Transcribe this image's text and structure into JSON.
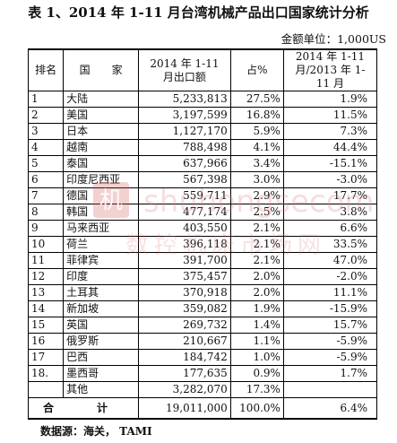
{
  "title": "表 1、2014 年 1-11 月台湾机械产品出口国家统计分析",
  "unit": "金额单位：1,000US",
  "headers": {
    "rank": "排名",
    "country": "国　　家",
    "export": "2014 年 1-11 月出口额",
    "share": "占%",
    "growth": "2014 年 1-11 月/2013 年 1-11 月"
  },
  "rows": [
    {
      "rank": "1",
      "country": "大陆",
      "export": "5,233,813",
      "share": "27.5%",
      "growth": "1.9%"
    },
    {
      "rank": "2",
      "country": "美国",
      "export": "3,197,599",
      "share": "16.8%",
      "growth": "11.5%"
    },
    {
      "rank": "3",
      "country": "日本",
      "export": "1,127,170",
      "share": "5.9%",
      "growth": "7.3%"
    },
    {
      "rank": "4",
      "country": "越南",
      "export": "788,498",
      "share": "4.1%",
      "growth": "44.4%"
    },
    {
      "rank": "5",
      "country": "泰国",
      "export": "637,966",
      "share": "3.4%",
      "growth": "-15.1%"
    },
    {
      "rank": "6",
      "country": "印度尼西亚",
      "export": "567,398",
      "share": "3.0%",
      "growth": "-3.0%"
    },
    {
      "rank": "7",
      "country": "德国",
      "export": "559,711",
      "share": "2.9%",
      "growth": "17.7%"
    },
    {
      "rank": "8",
      "country": "韩国",
      "export": "477,174",
      "share": "2.5%",
      "growth": "3.8%"
    },
    {
      "rank": "9",
      "country": "马来西亚",
      "export": "403,550",
      "share": "2.1%",
      "growth": "6.6%"
    },
    {
      "rank": "10",
      "country": "荷兰",
      "export": "396,118",
      "share": "2.1%",
      "growth": "33.5%"
    },
    {
      "rank": "11",
      "country": "菲律宾",
      "export": "391,700",
      "share": "2.1%",
      "growth": "47.0%"
    },
    {
      "rank": "12",
      "country": "印度",
      "export": "375,457",
      "share": "2.0%",
      "growth": "-2.0%"
    },
    {
      "rank": "13",
      "country": "土耳其",
      "export": "370,918",
      "share": "2.0%",
      "growth": "11.1%"
    },
    {
      "rank": "14",
      "country": "新加坡",
      "export": "359,082",
      "share": "1.9%",
      "growth": "-15.9%"
    },
    {
      "rank": "15",
      "country": "英国",
      "export": "269,732",
      "share": "1.4%",
      "growth": "15.7%"
    },
    {
      "rank": "16",
      "country": "俄罗斯",
      "export": "210,667",
      "share": "1.1%",
      "growth": "-5.9%"
    },
    {
      "rank": "17",
      "country": "巴西",
      "export": "184,742",
      "share": "1.0%",
      "growth": "-5.9%"
    },
    {
      "rank": "18.",
      "country": "墨西哥",
      "export": "177,635",
      "share": "0.9%",
      "growth": "1.7%"
    },
    {
      "rank": "",
      "country": "其他",
      "export": "3,282,070",
      "share": "17.3%",
      "growth": ""
    }
  ],
  "total": {
    "label": "合　计",
    "export": "19,011,000",
    "share": "100.0%",
    "growth": "6.4%"
  },
  "source": "数据源：海关， TAMI",
  "watermark": {
    "line1": "shuhongsecom",
    "line2": "数控机床市场网"
  }
}
